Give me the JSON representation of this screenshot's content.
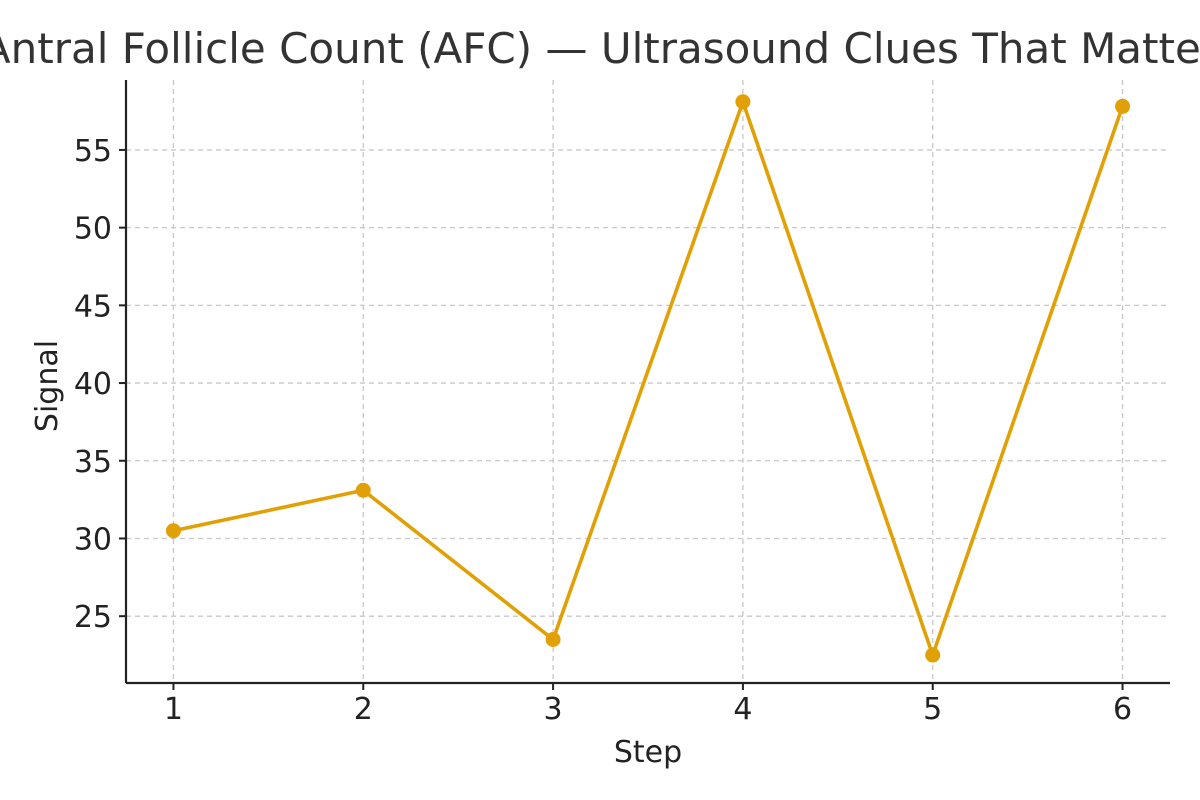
{
  "chart_data": {
    "type": "line",
    "title": "Antral Follicle Count (AFC) — Ultrasound Clues That Matter",
    "xlabel": "Step",
    "ylabel": "Signal",
    "x": [
      1,
      2,
      3,
      4,
      5,
      6
    ],
    "series": [
      {
        "values": [
          30.5,
          33.1,
          23.5,
          58.1,
          22.5,
          57.8
        ],
        "color": "#E1A006"
      }
    ],
    "xlim": [
      0.75,
      6.25
    ],
    "ylim": [
      20.7,
      59.5
    ],
    "xticks": [
      1,
      2,
      3,
      4,
      5,
      6
    ],
    "yticks": [
      25,
      30,
      35,
      40,
      45,
      50,
      55
    ],
    "grid": true,
    "legend": "none"
  }
}
